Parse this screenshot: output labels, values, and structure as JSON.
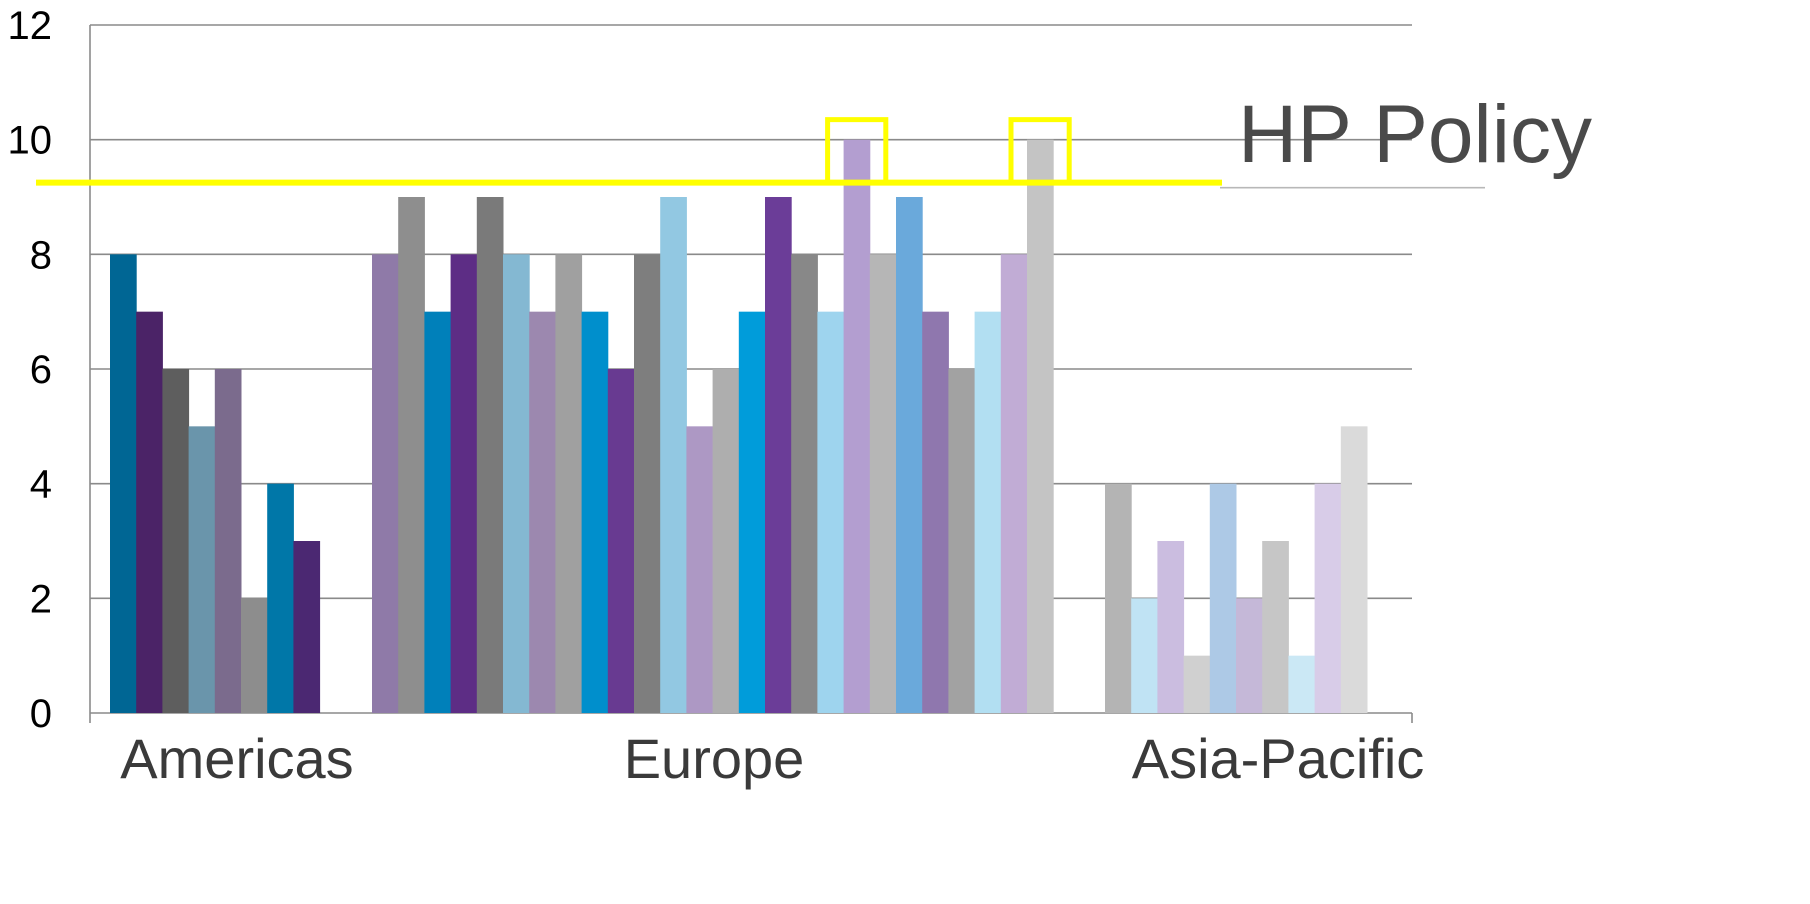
{
  "chart_data": {
    "type": "bar",
    "ylim": [
      0,
      12
    ],
    "yticks": [
      0,
      2,
      4,
      6,
      8,
      10,
      12
    ],
    "grid": true,
    "categories": [
      "Americas",
      "Europe",
      "Asia-Pacific"
    ],
    "groups": [
      {
        "category": "Americas",
        "values": [
          8,
          7,
          6,
          5,
          6,
          2,
          4,
          3
        ],
        "colors": [
          "#006694",
          "#4b2367",
          "#5e5e5e",
          "#6a95ab",
          "#7b6b8d",
          "#8d8d8d",
          "#0077a8",
          "#4b2872"
        ]
      },
      {
        "category": "Europe",
        "values": [
          8,
          9,
          7,
          8,
          9,
          8,
          7,
          8,
          7,
          6,
          8,
          9,
          5,
          6,
          7,
          9,
          8,
          7,
          10,
          8,
          9,
          7,
          6,
          7,
          8,
          10
        ],
        "colors": [
          "#8f7aa8",
          "#8e8e8e",
          "#0080ba",
          "#5d2d85",
          "#7a7a7a",
          "#84b8d2",
          "#9c88af",
          "#a0a0a0",
          "#008fcc",
          "#683a91",
          "#7e7e7e",
          "#92c8e2",
          "#ad98c4",
          "#aeaeae",
          "#009cda",
          "#6b3d98",
          "#888888",
          "#9ed4ee",
          "#b39ed0",
          "#b6b6b6",
          "#6aa9db",
          "#8f77ae",
          "#a2a2a2",
          "#b2dff2",
          "#c1acd5",
          "#c4c4c4"
        ]
      },
      {
        "category": "Asia-Pacific",
        "values": [
          4,
          2,
          3,
          1,
          4,
          2,
          3,
          1,
          4,
          5
        ],
        "colors": [
          "#b4b4b4",
          "#c0e3f4",
          "#cbbde0",
          "#d0d0d0",
          "#adc9e6",
          "#c5b8d8",
          "#c6c6c6",
          "#cbe8f5",
          "#d8cce8",
          "#dadada"
        ]
      }
    ],
    "reference_line": {
      "label": "HP Policy",
      "value": 9.25,
      "color": "#ffff00"
    },
    "highlighted_bars": [
      {
        "category": "Europe",
        "index": 18,
        "color": "#ffff00"
      },
      {
        "category": "Europe",
        "index": 25,
        "color": "#ffff00"
      }
    ],
    "colors": {
      "grid": "#8a8a8a",
      "axis": "#8a8a8a",
      "tick_text": "#000000",
      "category_text": "#3a3a3a",
      "policy_text": "#4a4a4a"
    }
  }
}
